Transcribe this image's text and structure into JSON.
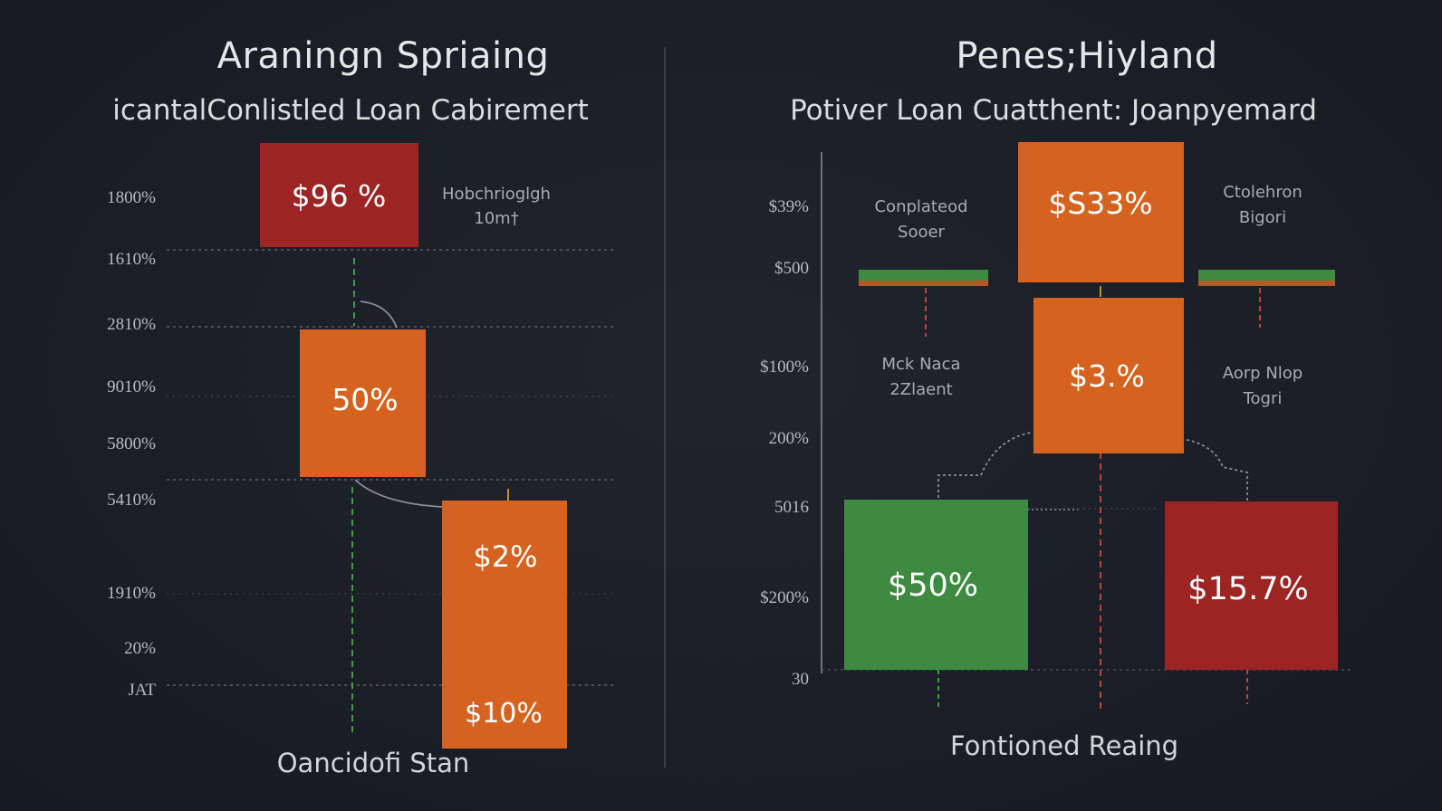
{
  "colors": {
    "background": "#1b1e27",
    "red": "#9c2423",
    "orange": "#d5631f",
    "green": "#3f8a41",
    "gridline": "#4a4e5a",
    "connector": "#8a8d96",
    "green_dash": "#3e9a45",
    "red_dash": "#b8472e"
  },
  "icons": {},
  "chart_data": [
    {
      "type": "bar",
      "title": "Araningn Spriaing",
      "subtitle": "icantalConlistled Loan Cabiremert",
      "xlabel": "Oancidofi Stan",
      "ylabel": "",
      "ytick_labels": [
        "1800%",
        "1610%",
        "2810%",
        "9010%",
        "5800%",
        "5410%",
        "1910%",
        "20%",
        "JAT"
      ],
      "ylim": [
        0,
        100
      ],
      "grid": true,
      "annotations": [
        {
          "lines": [
            "Hobchrioglgh",
            "10m†"
          ]
        }
      ],
      "bars": [
        {
          "label": "$96 %",
          "color": "red",
          "y0": 79,
          "y1": 95
        },
        {
          "label": "50%",
          "color": "orange",
          "y0": 45,
          "y1": 68
        },
        {
          "label": "$2%",
          "color": "orange",
          "y0": 0,
          "y1": 38
        },
        {
          "label": "$10%",
          "color": "orange",
          "y0": 0,
          "y1": 0
        }
      ]
    },
    {
      "type": "bar",
      "title": "Penes;Hiyland",
      "subtitle": "Potiver Loan Cuatthent: Joanpyemard",
      "xlabel": "Fontioned Reaing",
      "ylabel": "",
      "ytick_labels": [
        "$39%",
        "$500",
        "$100%",
        "200%",
        "5016",
        "$200%",
        "30"
      ],
      "ylim": [
        0,
        100
      ],
      "grid": false,
      "annotations": [
        {
          "lines": [
            "Conplateod",
            "Sooer"
          ]
        },
        {
          "lines": [
            "Ctolehron",
            "Bigori"
          ]
        },
        {
          "lines": [
            "Mck Naca",
            "2Zlaent"
          ]
        },
        {
          "lines": [
            "Aorp Nlop",
            "Togri"
          ]
        }
      ],
      "bars": [
        {
          "label": "",
          "color": "green",
          "y0": 72,
          "y1": 75
        },
        {
          "label": "$S33%",
          "color": "orange",
          "y0": 74,
          "y1": 97
        },
        {
          "label": "",
          "color": "green",
          "y0": 72,
          "y1": 75
        },
        {
          "label": "$3.%",
          "color": "orange",
          "y0": 48,
          "y1": 73
        },
        {
          "label": "$50%",
          "color": "green",
          "y0": 0,
          "y1": 28
        },
        {
          "label": "$15.7%",
          "color": "red",
          "y0": 0,
          "y1": 28
        }
      ]
    }
  ]
}
